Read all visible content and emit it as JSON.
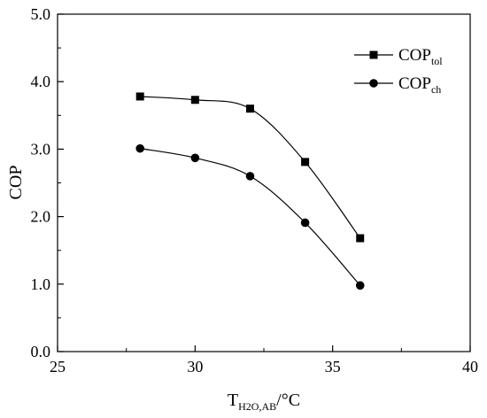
{
  "chart_data": {
    "type": "line",
    "title": "",
    "xlabel": {
      "main": "T",
      "sub": "H2O,AB",
      "suffix": "/°C"
    },
    "ylabel": "COP",
    "xlim": [
      25,
      40
    ],
    "ylim": [
      0,
      5
    ],
    "xticks": [
      25,
      30,
      35,
      40
    ],
    "xtick_labels": [
      "25",
      "30",
      "35",
      "40"
    ],
    "yticks": [
      0,
      1,
      2,
      3,
      4,
      5
    ],
    "ytick_labels": [
      "0.0",
      "1.0",
      "2.0",
      "3.0",
      "4.0",
      "5.0"
    ],
    "grid": false,
    "legend_position": "top-right",
    "x": [
      28,
      30,
      32,
      34,
      36
    ],
    "series": [
      {
        "name": "COP",
        "name_sub": "tol",
        "marker": "square",
        "values": [
          3.78,
          3.73,
          3.6,
          2.81,
          1.68
        ]
      },
      {
        "name": "COP",
        "name_sub": "ch",
        "marker": "circle",
        "values": [
          3.01,
          2.87,
          2.6,
          1.91,
          0.98
        ]
      }
    ]
  }
}
